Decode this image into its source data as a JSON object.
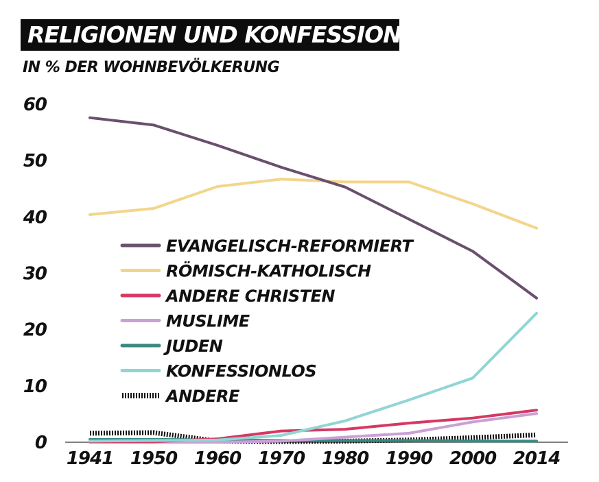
{
  "chart_data": {
    "type": "line",
    "title": "RELIGIONEN UND KONFESSIONEN",
    "subtitle": "IN % DER WOHNBEVÖLKERUNG",
    "x": [
      "1941",
      "1950",
      "1960",
      "1970",
      "1980",
      "1990",
      "2000",
      "2014"
    ],
    "ylim": [
      0,
      60
    ],
    "yticks": [
      "0",
      "10",
      "20",
      "30",
      "40",
      "50",
      "60"
    ],
    "grid": false,
    "legend_position": "center-left",
    "series": [
      {
        "name": "EVANGELISCH-REFORMIERT",
        "color": "#6a4f6e",
        "dash": false,
        "values": [
          57.6,
          56.3,
          52.7,
          48.8,
          45.3,
          39.6,
          33.9,
          25.6
        ]
      },
      {
        "name": "RÖMISCH-KATHOLISCH",
        "color": "#f3d58c",
        "dash": false,
        "values": [
          40.4,
          41.5,
          45.4,
          46.7,
          46.2,
          46.2,
          42.3,
          38.0
        ]
      },
      {
        "name": "ANDERE CHRISTEN",
        "color": "#d63864",
        "dash": false,
        "values": [
          0.1,
          0.1,
          0.6,
          2.0,
          2.3,
          3.4,
          4.3,
          5.7
        ]
      },
      {
        "name": "MUSLIME",
        "color": "#caa0d6",
        "dash": false,
        "values": [
          0.0,
          0.0,
          0.0,
          0.2,
          0.9,
          1.6,
          3.6,
          5.1
        ]
      },
      {
        "name": "JUDEN",
        "color": "#3a8a84",
        "dash": false,
        "values": [
          0.5,
          0.5,
          0.4,
          0.3,
          0.3,
          0.3,
          0.2,
          0.2
        ]
      },
      {
        "name": "KONFESSIONLOS",
        "color": "#8fd6d4",
        "dash": false,
        "values": [
          0.2,
          0.3,
          0.4,
          1.2,
          3.8,
          7.5,
          11.4,
          22.9
        ]
      },
      {
        "name": "ANDERE",
        "color": "#111111",
        "dash": true,
        "values": [
          1.6,
          1.7,
          0.2,
          0.1,
          0.2,
          0.4,
          0.8,
          1.3
        ]
      }
    ]
  }
}
